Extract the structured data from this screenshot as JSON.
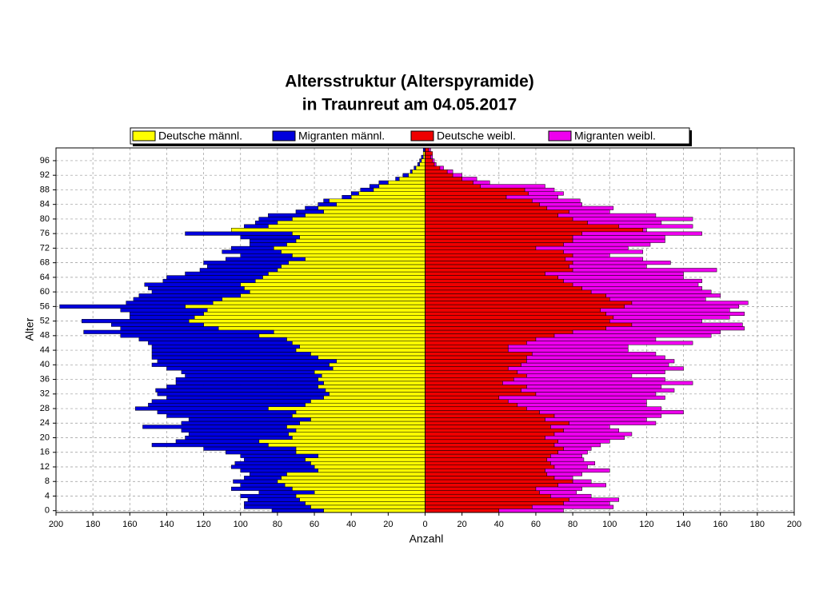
{
  "chart_data": {
    "type": "pyramid",
    "title": "Altersstruktur (Alterspyramide)",
    "subtitle": "in Traunreut am 04.05.2017",
    "y_label": "Alter",
    "x_label": "Anzahl",
    "categories": [
      "0",
      null,
      null,
      null,
      "4",
      null,
      null,
      null,
      "8",
      null,
      null,
      null,
      "12",
      null,
      null,
      null,
      "16",
      null,
      null,
      null,
      "20",
      null,
      null,
      null,
      "24",
      null,
      null,
      null,
      "28",
      null,
      null,
      null,
      "32",
      null,
      null,
      null,
      "36",
      null,
      null,
      null,
      "40",
      null,
      null,
      null,
      "44",
      null,
      null,
      null,
      "48",
      null,
      null,
      null,
      "52",
      null,
      null,
      null,
      "56",
      null,
      null,
      null,
      "60",
      null,
      null,
      null,
      "64",
      null,
      null,
      null,
      "68",
      null,
      null,
      null,
      "72",
      null,
      null,
      null,
      "76",
      null,
      null,
      null,
      "80",
      null,
      null,
      null,
      "84",
      null,
      null,
      null,
      "88",
      null,
      null,
      null,
      "92",
      null,
      null,
      null,
      "96",
      null,
      null,
      null
    ],
    "series": [
      {
        "name": "Deutsche männl.",
        "color": "#ffff00",
        "side": "left",
        "values": [
          55,
          62,
          65,
          68,
          70,
          60,
          72,
          76,
          80,
          78,
          75,
          58,
          60,
          62,
          65,
          58,
          70,
          70,
          85,
          90,
          72,
          74,
          70,
          75,
          68,
          62,
          72,
          70,
          85,
          65,
          62,
          55,
          52,
          54,
          58,
          55,
          58,
          56,
          60,
          50,
          52,
          48,
          58,
          62,
          70,
          68,
          72,
          75,
          90,
          82,
          112,
          120,
          128,
          125,
          120,
          118,
          130,
          115,
          110,
          100,
          95,
          98,
          100,
          92,
          88,
          85,
          80,
          78,
          74,
          65,
          72,
          78,
          82,
          75,
          70,
          68,
          72,
          105,
          85,
          80,
          72,
          65,
          55,
          58,
          48,
          52,
          40,
          36,
          28,
          25,
          20,
          14,
          9,
          7,
          5,
          3,
          2,
          1,
          1,
          0
        ]
      },
      {
        "name": "Migranten männl.",
        "color": "#0000dd",
        "side": "left",
        "values": [
          28,
          36,
          33,
          28,
          30,
          30,
          33,
          24,
          24,
          20,
          20,
          42,
          45,
          41,
          33,
          42,
          38,
          50,
          63,
          45,
          58,
          54,
          62,
          78,
          64,
          66,
          68,
          75,
          72,
          85,
          86,
          85,
          93,
          92,
          82,
          80,
          77,
          74,
          72,
          90,
          96,
          97,
          90,
          86,
          78,
          80,
          78,
          80,
          75,
          103,
          53,
          50,
          58,
          35,
          40,
          47,
          68,
          47,
          48,
          55,
          53,
          52,
          52,
          50,
          52,
          45,
          42,
          40,
          46,
          43,
          28,
          32,
          23,
          20,
          25,
          32,
          58,
          0,
          13,
          12,
          18,
          20,
          15,
          7,
          10,
          3,
          5,
          4,
          7,
          5,
          5,
          2,
          3,
          1,
          1,
          1,
          1,
          1,
          0,
          1
        ]
      },
      {
        "name": "Deutsche weibl.",
        "color": "#ee0000",
        "side": "right",
        "values": [
          40,
          58,
          75,
          78,
          68,
          62,
          60,
          72,
          80,
          70,
          66,
          65,
          70,
          68,
          66,
          68,
          72,
          75,
          70,
          72,
          65,
          70,
          75,
          68,
          78,
          65,
          70,
          62,
          55,
          50,
          45,
          40,
          60,
          52,
          55,
          42,
          48,
          55,
          50,
          45,
          52,
          55,
          55,
          58,
          45,
          45,
          55,
          60,
          70,
          80,
          98,
          112,
          100,
          102,
          98,
          95,
          108,
          112,
          100,
          98,
          90,
          85,
          80,
          75,
          72,
          65,
          80,
          78,
          80,
          76,
          80,
          75,
          60,
          75,
          80,
          80,
          85,
          118,
          105,
          88,
          80,
          72,
          78,
          66,
          62,
          58,
          44,
          56,
          54,
          30,
          26,
          20,
          15,
          12,
          8,
          5,
          4,
          3,
          4,
          2
        ]
      },
      {
        "name": "Migranten weibl.",
        "color": "#ee00ee",
        "side": "right",
        "values": [
          35,
          44,
          25,
          27,
          22,
          20,
          25,
          26,
          10,
          10,
          19,
          35,
          18,
          24,
          20,
          17,
          16,
          15,
          25,
          28,
          43,
          42,
          30,
          32,
          47,
          55,
          58,
          78,
          73,
          70,
          75,
          90,
          65,
          83,
          73,
          103,
          82,
          57,
          80,
          95,
          80,
          80,
          75,
          67,
          65,
          65,
          90,
          65,
          85,
          80,
          75,
          60,
          50,
          63,
          75,
          70,
          62,
          63,
          52,
          62,
          65,
          65,
          68,
          75,
          68,
          75,
          78,
          42,
          53,
          42,
          20,
          43,
          50,
          47,
          50,
          50,
          65,
          2,
          40,
          40,
          65,
          53,
          22,
          36,
          23,
          26,
          28,
          19,
          16,
          35,
          9,
          8,
          5,
          3,
          2,
          1,
          1,
          1,
          0,
          1
        ]
      }
    ],
    "xlim": [
      -200,
      200
    ],
    "xticks": [
      {
        "value": -200,
        "label": "200"
      },
      {
        "value": -180,
        "label": "180"
      },
      {
        "value": -160,
        "label": "160"
      },
      {
        "value": -140,
        "label": "140"
      },
      {
        "value": -120,
        "label": "120"
      },
      {
        "value": -100,
        "label": "100"
      },
      {
        "value": -80,
        "label": "80"
      },
      {
        "value": -60,
        "label": "60"
      },
      {
        "value": -40,
        "label": "40"
      },
      {
        "value": -20,
        "label": "20"
      },
      0,
      20,
      40,
      60,
      80,
      100,
      120,
      140,
      160,
      180,
      200
    ],
    "grid": true
  }
}
